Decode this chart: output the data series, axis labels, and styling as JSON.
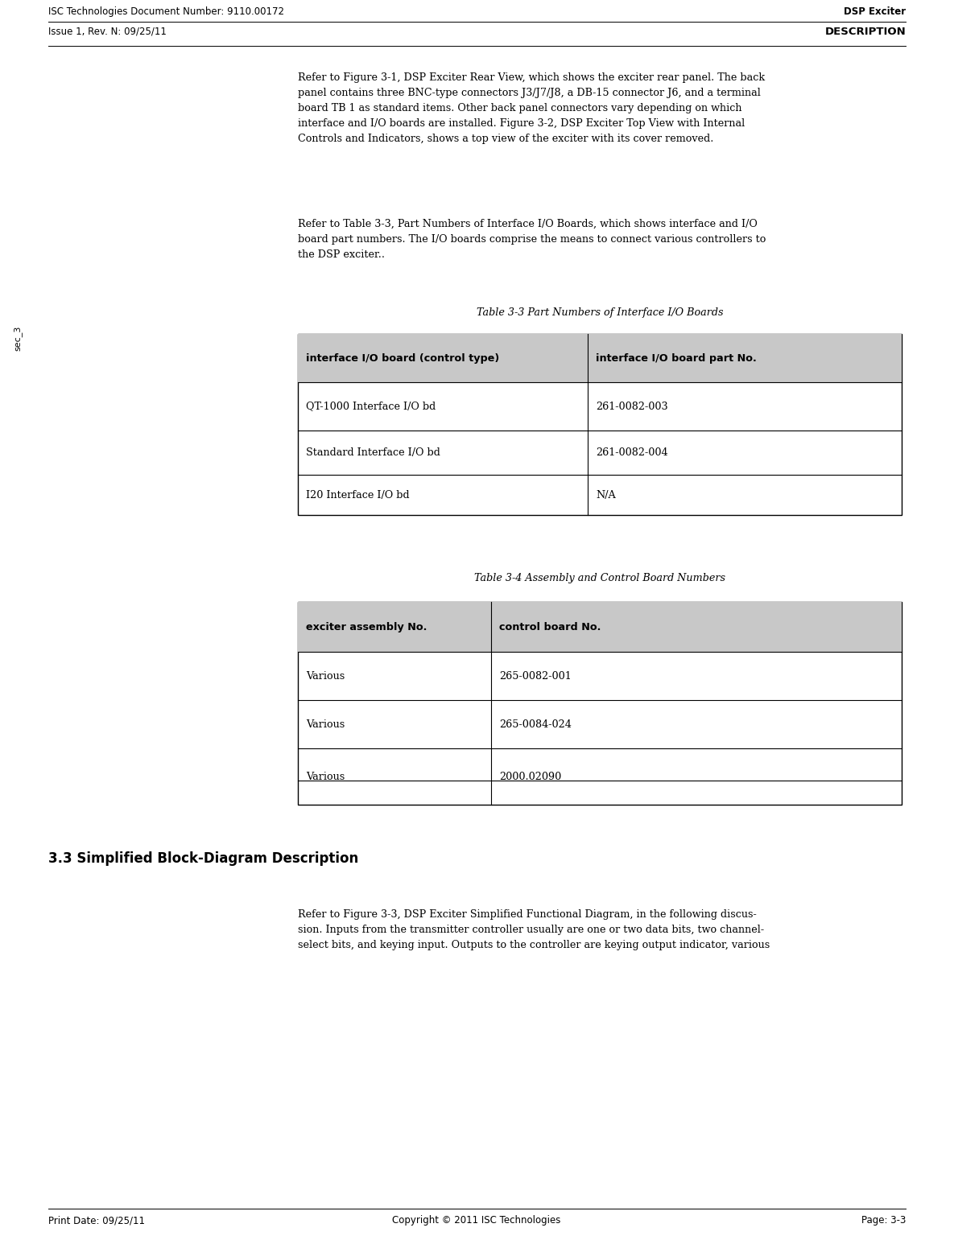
{
  "header_left": "ISC Technologies Document Number: 9110.00172",
  "header_right": "DSP Exciter",
  "subheader_left": "Issue 1, Rev. N: 09/25/11",
  "subheader_right": "DESCRIPTION",
  "footer_left": "Print Date: 09/25/11",
  "footer_center": "Copyright © 2011 ISC Technologies",
  "footer_right": "Page: 3-3",
  "sidebar_text": "sec_3",
  "table1_title": "Table 3-3 Part Numbers of Interface I/O Boards",
  "table1_headers": [
    "interface I/O board (control type)",
    "interface I/O board part No."
  ],
  "table1_rows": [
    [
      "QT-1000 Interface I/O bd",
      "261-0082-003"
    ],
    [
      "Standard Interface I/O bd",
      "261-0082-004"
    ],
    [
      "I20 Interface I/O bd",
      "N/A"
    ]
  ],
  "table2_title": "Table 3-4 Assembly and Control Board Numbers",
  "table2_headers": [
    "exciter assembly No.",
    "control board No."
  ],
  "table2_rows": [
    [
      "Various",
      "265-0082-001"
    ],
    [
      "Various",
      "265-0084-024"
    ],
    [
      "Various",
      "2000.02090"
    ]
  ],
  "section_heading": "3.3 Simplified Block-Diagram Description",
  "bg_color": "#ffffff",
  "text_color": "#000000",
  "table_border_color": "#000000",
  "table_header_bg": "#c8c8c8",
  "p1_line1": "Refer to Figure 3-1, DSP Exciter Rear View, which shows the exciter rear panel. The back",
  "p1_line2": "panel contains three BNC-type connectors J3/J7/J8, a DB-15 connector J6, and a terminal",
  "p1_line3": "board TB 1 as standard items. Other back panel connectors vary depending on which",
  "p1_line4": "interface and I/O boards are installed. Figure 3-2, DSP Exciter Top View with Internal",
  "p1_line5": "Controls and Indicators, shows a top view of the exciter with its cover removed.",
  "p2_line1": "Refer to Table 3-3, Part Numbers of Interface I/O Boards, which shows interface and I/O",
  "p2_line2": "board part numbers. The I/O boards comprise the means to connect various controllers to",
  "p2_line3": "the DSP exciter..",
  "p3_line1": "Refer to Figure 3-3, DSP Exciter Simplified Functional Diagram, in the following discus-",
  "p3_line2": "sion. Inputs from the transmitter controller usually are one or two data bits, two channel-",
  "p3_line3": "select bits, and keying input. Outputs to the controller are keying output indicator, various",
  "dpi": 100,
  "fig_w": 11.85,
  "fig_h": 15.36
}
